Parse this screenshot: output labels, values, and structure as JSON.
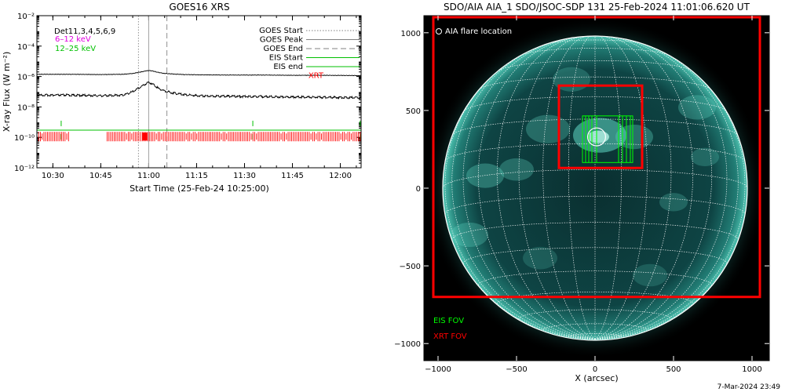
{
  "goes_panel": {
    "title": "GOES16 XRS",
    "ylabel": "X-ray Flux (W m⁻²)",
    "xlabel": "Start Time (25-Feb-24 10:25:00)",
    "det_label": "Det11,3,4,5,6,9",
    "energy_bands": [
      {
        "label": "6–12 keV",
        "color": "#e000e0"
      },
      {
        "label": "12–25 keV",
        "color": "#00c000"
      }
    ],
    "legend": [
      {
        "label": "GOES Start",
        "style": "dotted",
        "color": "#808080"
      },
      {
        "label": "GOES Peak",
        "style": "solid",
        "color": "#808080"
      },
      {
        "label": "GOES End",
        "style": "dashed",
        "color": "#808080"
      },
      {
        "label": "EIS Start",
        "style": "solid",
        "color": "#00c000"
      },
      {
        "label": "EIS end",
        "style": "solid",
        "color": "#00c000"
      },
      {
        "label": "XRT",
        "style": "text",
        "color": "#ff0000"
      }
    ],
    "y_ticks": [
      {
        "exp": -2,
        "label": "10⁻²"
      },
      {
        "exp": -4,
        "label": "10⁻⁴"
      },
      {
        "exp": -6,
        "label": "10⁻⁶"
      },
      {
        "exp": -8,
        "label": "10⁻⁸"
      },
      {
        "exp": -10,
        "label": "10⁻¹⁰"
      },
      {
        "exp": -12,
        "label": "10⁻¹²"
      }
    ],
    "x_ticks": [
      {
        "min": 5,
        "label": "10:30"
      },
      {
        "min": 20,
        "label": "10:45"
      },
      {
        "min": 35,
        "label": "11:00"
      },
      {
        "min": 50,
        "label": "11:15"
      },
      {
        "min": 65,
        "label": "11:30"
      },
      {
        "min": 80,
        "label": "11:45"
      },
      {
        "min": 95,
        "label": "12:00"
      }
    ]
  },
  "chart_data": [
    {
      "type": "line",
      "title": "GOES16 XRS",
      "xlabel": "Start Time (25-Feb-24 10:25:00)",
      "ylabel": "X-ray Flux (W m⁻²)",
      "x_unit": "minutes after 10:25:00",
      "xlim": [
        0,
        101.5
      ],
      "ylim": [
        1e-12,
        0.01
      ],
      "yscale": "log",
      "series": [
        {
          "name": "",
          "color": "#000000",
          "x": [
            0,
            10,
            20,
            27,
            30,
            32,
            34,
            35,
            36,
            37,
            38,
            40,
            43,
            46,
            50,
            60,
            70,
            80,
            90,
            101.5
          ],
          "y": [
            1.4e-06,
            1.4e-06,
            1.35e-06,
            1.4e-06,
            1.6e-06,
            1.9e-06,
            2.3e-06,
            2.5e-06,
            2.35e-06,
            2.1e-06,
            1.85e-06,
            1.6e-06,
            1.45e-06,
            1.35e-06,
            1.3e-06,
            1.25e-06,
            1.25e-06,
            1.2e-06,
            1.2e-06,
            1.15e-06
          ]
        },
        {
          "name": "",
          "color": "#000000",
          "x": [
            0,
            10,
            20,
            27,
            30,
            32,
            34,
            35,
            36,
            37,
            38,
            40,
            43,
            46,
            50,
            60,
            70,
            80,
            90,
            101.5
          ],
          "y": [
            6e-08,
            6e-08,
            5.5e-08,
            6e-08,
            1e-07,
            1.8e-07,
            3.3e-07,
            4.2e-07,
            3.5e-07,
            2.5e-07,
            1.7e-07,
            1.1e-07,
            8e-08,
            6.5e-08,
            5.5e-08,
            5e-08,
            4.8e-08,
            4.5e-08,
            4.3e-08,
            4e-08
          ]
        }
      ],
      "vertical_markers": {
        "goes_start": 31.8,
        "goes_peak": 35.0,
        "goes_end": 40.7
      },
      "eis_level": 3e-10,
      "eis_markers": [
        7.6,
        67.6,
        101.2
      ],
      "xrt_level": 1e-10,
      "xrt_intervals": [
        [
          0,
          10
        ],
        [
          22,
          101.5
        ]
      ]
    },
    {
      "type": "scatter",
      "title": "SDO/AIA AIA_1 SDO/JSOC-SDP 131 25-Feb-2024 11:01:06.620 UT",
      "xlabel": "X (arcsec)",
      "ylabel": "",
      "xlim": [
        -1090,
        1110
      ],
      "ylim": [
        -1110,
        1110
      ],
      "x_ticks": [
        -1000,
        -500,
        0,
        500,
        1000
      ],
      "y_ticks": [
        -1000,
        -500,
        0,
        500,
        1000
      ],
      "solar_radius_arcsec": 970,
      "grid_spacing_deg": 10,
      "b0_deg": -7,
      "aia_flare_location": {
        "x": 10,
        "y": 330,
        "r": 60
      },
      "xrt_fov": [
        {
          "x0": -1030,
          "x1": 1050,
          "y0": -700,
          "y1": 1100
        },
        {
          "x0": -230,
          "x1": 300,
          "y0": 130,
          "y1": 660
        }
      ],
      "eis_fov": {
        "x0": -80,
        "x1": 240,
        "y0": 165,
        "y1": 465,
        "slit_columns": [
          -80,
          -60,
          -40,
          -20,
          10,
          150,
          175,
          200,
          225,
          240
        ]
      }
    }
  ],
  "aia_panel": {
    "title": "SDO/AIA AIA_1 SDO/JSOC-SDP 131 25-Feb-2024 11:01:06.620 UT",
    "flare_legend": "AIA flare location",
    "xlabel": "X (arcsec)",
    "eis_fov_label": "EIS FOV",
    "xrt_fov_label": "XRT FOV",
    "timestamp": "7-Mar-2024 23:49",
    "x_tick_labels": [
      "−1000",
      "−500",
      "0",
      "500",
      "1000"
    ],
    "y_tick_labels": [
      "−1000",
      "−500",
      "0",
      "500",
      "1000"
    ],
    "colors": {
      "xrt": "#ff0000",
      "eis": "#00ff00",
      "disk": "#0b3a3a",
      "limb": "#5fd8c4",
      "bg": "#000000"
    }
  }
}
